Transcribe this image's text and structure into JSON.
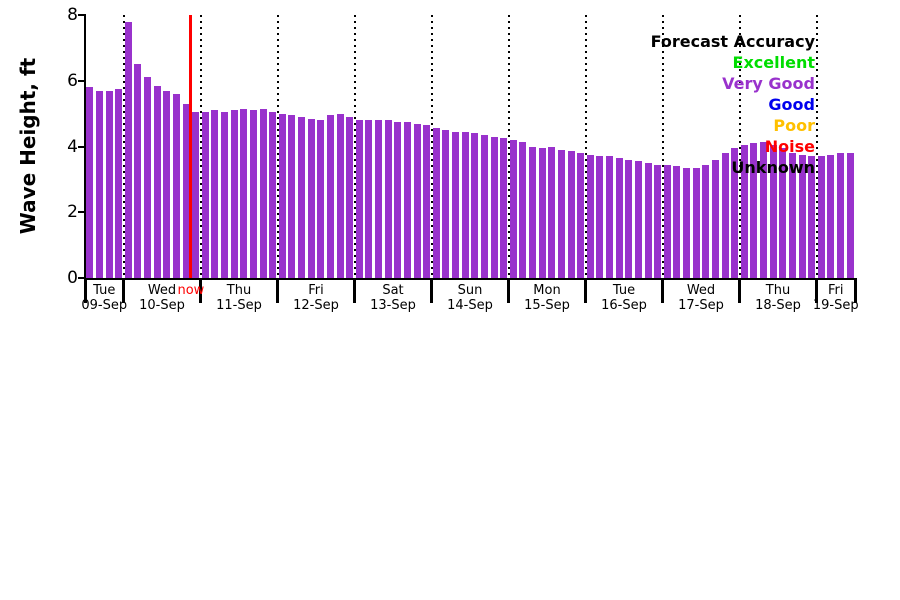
{
  "page": {
    "background": "#ffffff"
  },
  "chart_data": {
    "type": "bar",
    "title": "",
    "xlabel": "",
    "ylabel": "Wave Height, ft",
    "ylim": [
      0,
      8
    ],
    "yticks": [
      0,
      2,
      4,
      6,
      8
    ],
    "grid": "vertical-dotted-day-boundaries",
    "bar_color": "#9932CC",
    "axis_color": "#000000",
    "x_interval_hours": 3,
    "days": [
      {
        "name": "Tue",
        "date": "09-Sep",
        "values": [
          5.8,
          5.7,
          5.7,
          5.75
        ]
      },
      {
        "name": "Wed",
        "date": "10-Sep",
        "values": [
          7.8,
          6.5,
          6.1,
          5.85,
          5.7,
          5.6,
          5.3,
          5.05
        ]
      },
      {
        "name": "Thu",
        "date": "11-Sep",
        "values": [
          5.05,
          5.1,
          5.05,
          5.1,
          5.15,
          5.1,
          5.15,
          5.05
        ]
      },
      {
        "name": "Fri",
        "date": "12-Sep",
        "values": [
          5.0,
          4.95,
          4.9,
          4.85,
          4.8,
          4.95,
          5.0,
          4.9
        ]
      },
      {
        "name": "Sat",
        "date": "13-Sep",
        "values": [
          4.8,
          4.8,
          4.8,
          4.8,
          4.75,
          4.75,
          4.7,
          4.65
        ]
      },
      {
        "name": "Sun",
        "date": "14-Sep",
        "values": [
          4.55,
          4.5,
          4.45,
          4.45,
          4.4,
          4.35,
          4.3,
          4.25
        ]
      },
      {
        "name": "Mon",
        "date": "15-Sep",
        "values": [
          4.2,
          4.15,
          4.0,
          3.95,
          4.0,
          3.9,
          3.85,
          3.8
        ]
      },
      {
        "name": "Tue",
        "date": "16-Sep",
        "values": [
          3.75,
          3.7,
          3.7,
          3.65,
          3.6,
          3.55,
          3.5,
          3.45
        ]
      },
      {
        "name": "Wed",
        "date": "17-Sep",
        "values": [
          3.45,
          3.4,
          3.35,
          3.35,
          3.45,
          3.6,
          3.8,
          3.95
        ]
      },
      {
        "name": "Thu",
        "date": "18-Sep",
        "values": [
          4.05,
          4.1,
          4.15,
          4.05,
          3.95,
          3.8,
          3.75,
          3.7
        ]
      },
      {
        "name": "Fri",
        "date": "19-Sep",
        "values": [
          3.7,
          3.75,
          3.8,
          3.8
        ]
      }
    ],
    "now_marker": {
      "label": "now",
      "color": "#ff0000",
      "slot": 11
    },
    "legend": {
      "title": "Forecast Accuracy",
      "position": "top-right",
      "entries": [
        {
          "label": "Excellent",
          "color": "#00DD00"
        },
        {
          "label": "Very Good",
          "color": "#9932CC"
        },
        {
          "label": "Good",
          "color": "#0000EE"
        },
        {
          "label": "Poor",
          "color": "#FFC000"
        },
        {
          "label": "Noise",
          "color": "#FF0000"
        },
        {
          "label": "Unknown",
          "color": "#000000"
        }
      ]
    }
  }
}
